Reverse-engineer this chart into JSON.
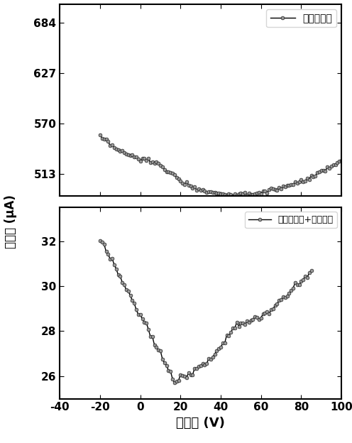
{
  "title": "",
  "xlabel": "棚电压 (V)",
  "ylabel": "漏电流 (μA)",
  "xlim": [
    -40,
    100
  ],
  "xticks": [
    -40,
    -20,
    0,
    20,
    40,
    60,
    80,
    100
  ],
  "panel1": {
    "label": "双层石墨烯",
    "yticks": [
      513,
      570,
      627,
      684
    ],
    "ylim": [
      488,
      705
    ]
  },
  "panel2": {
    "label": "双层石墨烯+三聚氰胺",
    "yticks": [
      26,
      28,
      30,
      32
    ],
    "ylim": [
      25.0,
      33.5
    ]
  },
  "line_color": "#000000",
  "marker_face": "#999999",
  "markersize": 3.5,
  "linewidth": 1.0
}
